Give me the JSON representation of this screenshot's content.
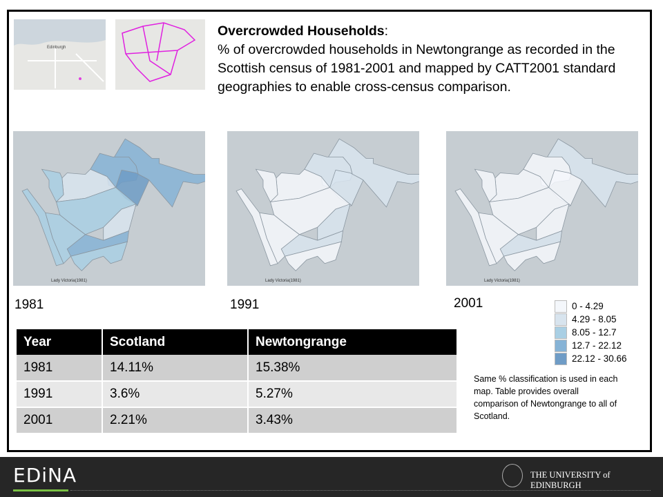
{
  "thumbnails": {
    "city_label": "Edinburgh"
  },
  "title": {
    "bold": "Overcrowded Households",
    "colon": ":",
    "body": "% of overcrowded households in Newtongrange as recorded in the Scottish census of 1981-2001 and mapped by CATT2001 standard geographies to enable cross-census comparison."
  },
  "maps": [
    {
      "year": "1981",
      "label": "Lady Victoria(1981)",
      "region_classes": [
        3,
        3,
        4,
        1,
        2,
        2,
        1,
        2,
        3,
        2
      ]
    },
    {
      "year": "1991",
      "label": "Lady Victoria(1981)",
      "region_classes": [
        1,
        1,
        1,
        0,
        0,
        0,
        1,
        0,
        1,
        0
      ]
    },
    {
      "year": "2001",
      "label": "Lady Victoria(1981)",
      "region_classes": [
        1,
        0,
        0,
        0,
        0,
        0,
        0,
        0,
        1,
        0
      ]
    }
  ],
  "legend": {
    "colors": [
      "#f4f7fb",
      "#d8e4ee",
      "#a9cfe4",
      "#86b3d6",
      "#6f9cc6"
    ],
    "items": [
      "0 - 4.29",
      "4.29 - 8.05",
      "8.05 - 12.7",
      "12.7 - 22.12",
      "22.12 - 30.66"
    ]
  },
  "table": {
    "headers": [
      "Year",
      "Scotland",
      "Newtongrange"
    ],
    "rows": [
      [
        "1981",
        "14.11%",
        "15.38%"
      ],
      [
        "1991",
        "3.6%",
        "5.27%"
      ],
      [
        "2001",
        "2.21%",
        "3.43%"
      ]
    ]
  },
  "note": "Same % classification is used in each map. Table provides overall comparison of Newtongrange to all of Scotland.",
  "footer": {
    "logo": "EDiNA",
    "university": "THE UNIVERSITY of EDINBURGH",
    "accent": "#7ac143"
  }
}
